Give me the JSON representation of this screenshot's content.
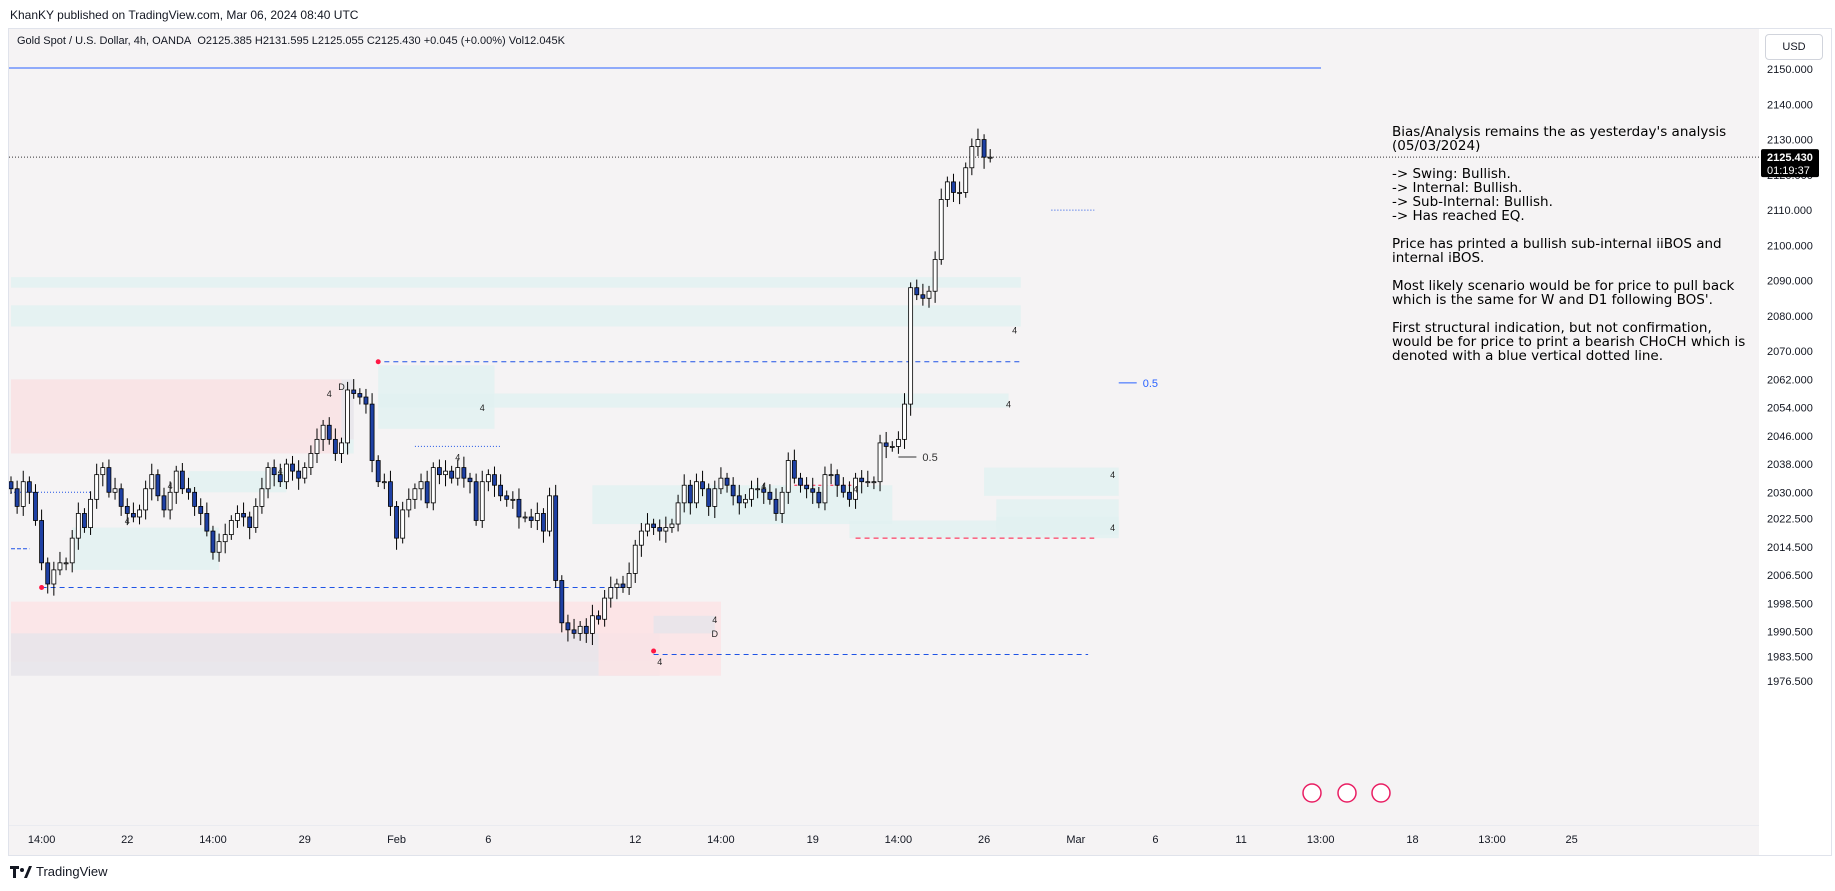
{
  "publisher_line": "KhanKY published on TradingView.com, Mar 06, 2024 08:40 UTC",
  "header": {
    "symbol": "Gold Spot / U.S. Dollar, 4h, OANDA",
    "open": "O2125.385",
    "high": "H2131.595",
    "low": "L2125.055",
    "close": "C2125.430",
    "change": "+0.045 (+0.00%)",
    "volume": "Vol12.045K",
    "currency_button": "USD"
  },
  "price_label": {
    "price": "2125.430",
    "countdown": "01:19:37"
  },
  "colors": {
    "candle_up": "#ffffff",
    "candle_down": "#1e40a4",
    "candle_border": "#000000",
    "zone_bull": "#e2f1f1",
    "zone_bear": "#fbe3e5",
    "zone_gray": "#e6e4ea",
    "level_blue": "#1e53e5",
    "level_red": "#ff1744",
    "price_label_bg": "#000000",
    "horizontal_line": "#2962ff"
  },
  "analysis": {
    "bias": "Bias/Analysis remains the as yesterday's analysis (05/03/2024)",
    "swing": "-> Swing:  Bullish.",
    "internal": "-> Internal:  Bullish.",
    "sub_internal": "-> Sub-Internal:  Bullish.",
    "eq": "-> Has reached EQ.",
    "printed": "Price has printed a bullish sub-internal iiBOS and internal iBOS.",
    "scenario": "Most likely scenario would be for price to pull back which is the same for W and D1 following BOS'.",
    "first": "First structural indication, but not confirmation, would be for price to print a bearish CHoCH which is denoted with a blue vertical dotted line."
  },
  "branding": "TradingView",
  "chart_data": {
    "type": "candlestick",
    "symbol": "XAUUSD",
    "timeframe": "4h",
    "ylim": [
      1972,
      2152
    ],
    "y_ticks": [
      2150,
      2140,
      2130,
      2120,
      2110,
      2100,
      2090,
      2080,
      2070,
      2062,
      2054,
      2046,
      2038,
      2030,
      2022.5,
      2014.5,
      2006.5,
      1998.5,
      1990.5,
      1983.5,
      1976.5
    ],
    "y_tick_labels": [
      "2150.000",
      "2140.000",
      "2130.000",
      "2120.000",
      "2110.000",
      "2100.000",
      "2090.000",
      "2080.000",
      "2070.000",
      "2062.000",
      "2054.000",
      "2046.000",
      "2038.000",
      "2030.000",
      "2022.500",
      "2014.500",
      "2006.500",
      "1998.500",
      "1990.500",
      "1983.500",
      "1976.500"
    ],
    "x_ticks": [
      {
        "label": "14:00",
        "bar": 5
      },
      {
        "label": "22",
        "bar": 19
      },
      {
        "label": "14:00",
        "bar": 33
      },
      {
        "label": "29",
        "bar": 48
      },
      {
        "label": "Feb",
        "bar": 63
      },
      {
        "label": "6",
        "bar": 78
      },
      {
        "label": "12",
        "bar": 102
      },
      {
        "label": "14:00",
        "bar": 116
      },
      {
        "label": "19",
        "bar": 131
      },
      {
        "label": "14:00",
        "bar": 145
      },
      {
        "label": "26",
        "bar": 159
      },
      {
        "label": "Mar",
        "bar": 174
      },
      {
        "label": "6",
        "bar": 187
      },
      {
        "label": "11",
        "bar": 201
      },
      {
        "label": "13:00",
        "bar": 214
      },
      {
        "label": "18",
        "bar": 229
      },
      {
        "label": "13:00",
        "bar": 242
      },
      {
        "label": "25",
        "bar": 255
      }
    ],
    "closes": [
      2031,
      2026,
      2033,
      2030,
      2022,
      2010,
      2004,
      2008,
      2010,
      2010,
      2017,
      2024,
      2020,
      2028,
      2035,
      2037,
      2030,
      2031,
      2026,
      2024,
      2023,
      2025,
      2031,
      2035,
      2029,
      2025,
      2030,
      2036,
      2031,
      2030,
      2026,
      2024,
      2019,
      2013,
      2016,
      2018,
      2022,
      2024,
      2023,
      2020,
      2026,
      2031,
      2037,
      2035,
      2033,
      2038,
      2036,
      2034,
      2037,
      2041,
      2045,
      2049,
      2045,
      2041,
      2044,
      2059,
      2058,
      2057,
      2055,
      2039,
      2033,
      2033,
      2026,
      2017,
      2025,
      2028,
      2031,
      2033,
      2027,
      2037,
      2035,
      2036,
      2034,
      2037,
      2034,
      2033,
      2022,
      2033,
      2035,
      2032,
      2029,
      2028,
      2028,
      2023,
      2023,
      2022,
      2024,
      2019,
      2029,
      2005,
      1993,
      1991,
      1990,
      1992,
      1990,
      1995,
      1994,
      2000,
      2003,
      2004,
      2003,
      2007,
      2015,
      2019,
      2021,
      2020,
      2019,
      2020,
      2021,
      2027,
      2032,
      2027,
      2033,
      2031,
      2026,
      2031,
      2034,
      2032,
      2029,
      2027,
      2028,
      2031,
      2031,
      2030,
      2028,
      2024,
      2030,
      2039,
      2034,
      2032,
      2031,
      2030,
      2027,
      2035,
      2035,
      2032,
      2030,
      2028,
      2034,
      2033,
      2033,
      2033,
      2044,
      2043,
      2043,
      2045,
      2055,
      2088,
      2086,
      2085,
      2087,
      2096,
      2113,
      2118,
      2115,
      2115,
      2122,
      2128,
      2130,
      2125,
      2125
    ],
    "annotations": [
      {
        "text": "4",
        "kind": "zone-label"
      },
      {
        "text": "D",
        "kind": "zone-label"
      },
      {
        "text": "0.5",
        "kind": "equilibrium"
      }
    ]
  }
}
